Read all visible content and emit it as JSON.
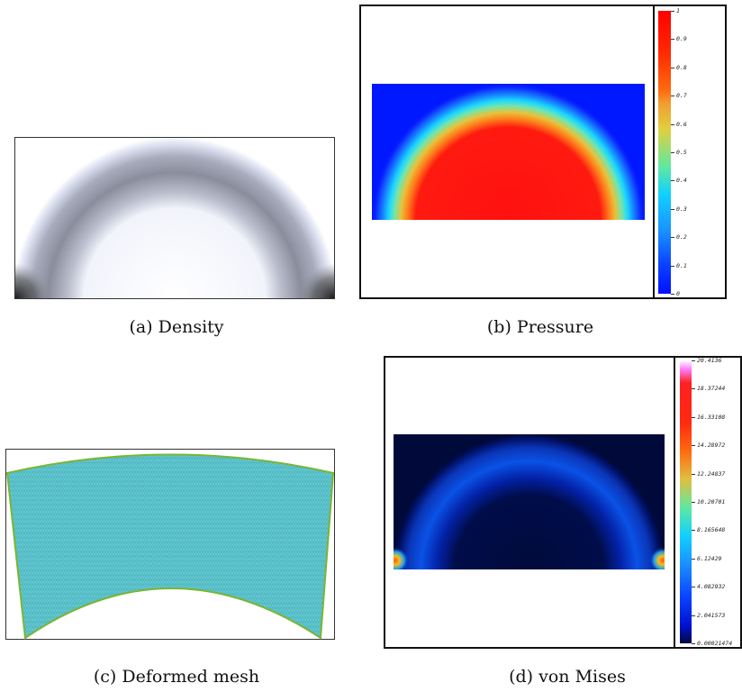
{
  "captions": {
    "a": "(a) Density",
    "b": "(b) Pressure",
    "c": "(c) Deformed mesh",
    "d": "(d) von Mises"
  },
  "pressure_colorbar": {
    "ticks": [
      "1",
      "0.9",
      "0.8",
      "0.7",
      "0.6",
      "0.5",
      "0.4",
      "0.3",
      "0.2",
      "0.1",
      "0"
    ]
  },
  "vonmises_colorbar": {
    "ticks": [
      "20.4136",
      "18.37244",
      "16.33108",
      "14.28972",
      "12.24837",
      "10.20701",
      "8.165648",
      "6.12429",
      "4.082932",
      "2.041573",
      "0.00021474"
    ]
  },
  "colors": {
    "pressure_low": "#0018ff",
    "pressure_high": "#ff1010",
    "vonmises_bg": "#000a3a",
    "mesh_fill": "#4fc7cf",
    "mesh_edge": "#7ab531"
  }
}
